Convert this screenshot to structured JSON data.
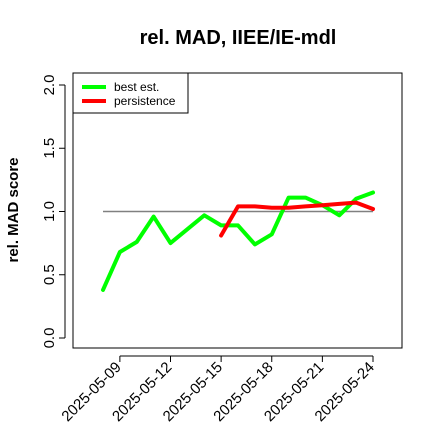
{
  "chart_data": {
    "type": "line",
    "title": "rel. MAD, IIEE/IE-mdl",
    "xlabel": "",
    "ylabel": "rel. MAD score",
    "ylim": [
      0,
      2.0
    ],
    "yticks": [
      "0.0",
      "0.5",
      "1.0",
      "1.5",
      "2.0"
    ],
    "xticks": [
      "2025-05-09",
      "2025-05-12",
      "2025-05-15",
      "2025-05-18",
      "2025-05-21",
      "2025-05-24"
    ],
    "reference_line": 1.0,
    "legend_position": "top-left",
    "series": [
      {
        "name": "best est.",
        "color": "#00ff00",
        "points": [
          [
            "2025-05-08",
            0.38
          ],
          [
            "2025-05-09",
            0.68
          ],
          [
            "2025-05-10",
            0.76
          ],
          [
            "2025-05-11",
            0.96
          ],
          [
            "2025-05-12",
            0.75
          ],
          [
            "2025-05-13",
            0.86
          ],
          [
            "2025-05-14",
            0.97
          ],
          [
            "2025-05-15",
            0.89
          ],
          [
            "2025-05-16",
            0.89
          ],
          [
            "2025-05-17",
            0.74
          ],
          [
            "2025-05-18",
            0.82
          ],
          [
            "2025-05-19",
            1.11
          ],
          [
            "2025-05-20",
            1.11
          ],
          [
            "2025-05-21",
            1.05
          ],
          [
            "2025-05-22",
            0.97
          ],
          [
            "2025-05-23",
            1.1
          ],
          [
            "2025-05-24",
            1.15
          ]
        ]
      },
      {
        "name": "persistence",
        "color": "#ff0000",
        "points": [
          [
            "2025-05-15",
            0.81
          ],
          [
            "2025-05-16",
            1.04
          ],
          [
            "2025-05-17",
            1.04
          ],
          [
            "2025-05-18",
            1.03
          ],
          [
            "2025-05-19",
            1.03
          ],
          [
            "2025-05-20",
            1.04
          ],
          [
            "2025-05-21",
            1.05
          ],
          [
            "2025-05-22",
            1.06
          ],
          [
            "2025-05-23",
            1.07
          ],
          [
            "2025-05-24",
            1.02
          ]
        ]
      }
    ]
  }
}
